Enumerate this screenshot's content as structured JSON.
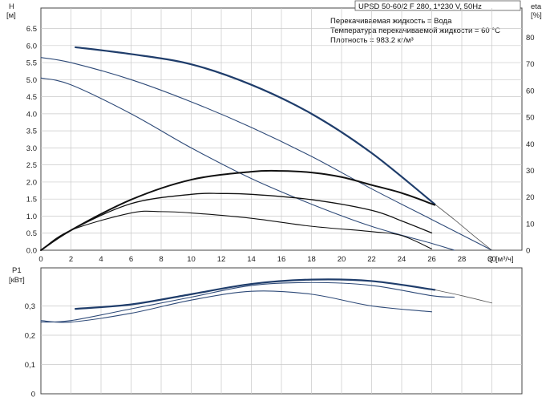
{
  "chart_data": [
    {
      "type": "line",
      "title": "UPSD 50-60/2 F 280, 1*230 V, 50Hz",
      "notes": [
        "Перекачиваемая жидкость = Вода",
        "Температура перекачиваемой жидкости = 60 °C",
        "Плотность = 983.2 кг/м³"
      ],
      "xlabel": "Q [м³/ч]",
      "ylabel_left": [
        "H",
        "[м]"
      ],
      "ylabel_right": [
        "eta",
        "[%]"
      ],
      "xlim": [
        0,
        32
      ],
      "ylim_left": [
        0,
        7.1
      ],
      "ylim_right": [
        0,
        91
      ],
      "x_ticks": [
        "0",
        "2",
        "4",
        "6",
        "8",
        "10",
        "12",
        "14",
        "16",
        "18",
        "20",
        "22",
        "24",
        "26",
        "28",
        "30"
      ],
      "y_ticks_left": [
        "0.0",
        "0.5",
        "1.0",
        "1.5",
        "2.0",
        "2.5",
        "3.0",
        "3.5",
        "4.0",
        "4.5",
        "5.0",
        "5.5",
        "6.0",
        "6.5"
      ],
      "y_ticks_right": [
        "0",
        "10",
        "20",
        "30",
        "40",
        "50",
        "60",
        "70",
        "80"
      ],
      "grid": true,
      "series": [
        {
          "role": "head",
          "axis": "left",
          "color": "#1f3d6b",
          "width": 2.2,
          "x": [
            2.3,
            6,
            10,
            14,
            18,
            22,
            26.2
          ],
          "y": [
            5.95,
            5.75,
            5.45,
            4.85,
            4.0,
            2.85,
            1.35
          ]
        },
        {
          "role": "head",
          "axis": "left",
          "color": "#2e4a78",
          "width": 1.1,
          "x": [
            0,
            2,
            6,
            10,
            14,
            18,
            22,
            26,
            30
          ],
          "y": [
            5.65,
            5.5,
            5.0,
            4.35,
            3.6,
            2.75,
            1.8,
            0.9,
            0.0
          ]
        },
        {
          "role": "head",
          "axis": "left",
          "color": "#2e4a78",
          "width": 1.1,
          "x": [
            0,
            2,
            6,
            10,
            14,
            18,
            22,
            26,
            27.5
          ],
          "y": [
            5.05,
            4.85,
            4.0,
            3.0,
            2.1,
            1.35,
            0.7,
            0.2,
            0.0
          ]
        },
        {
          "role": "head-extension",
          "axis": "left",
          "color": "#555555",
          "width": 0.8,
          "x": [
            26.2,
            27.5,
            29,
            30
          ],
          "y": [
            1.35,
            0.9,
            0.35,
            0.0
          ]
        },
        {
          "role": "eta",
          "axis": "right",
          "color": "#111111",
          "width": 2.0,
          "x": [
            0,
            2,
            6,
            10,
            14,
            16,
            18,
            20,
            22,
            24,
            26.2
          ],
          "y": [
            0,
            7.5,
            19,
            26.5,
            29.5,
            29.8,
            29.2,
            27.5,
            24.5,
            21.5,
            17
          ]
        },
        {
          "role": "eta",
          "axis": "right",
          "color": "#111111",
          "width": 1.3,
          "x": [
            0,
            2,
            6,
            10,
            12,
            14,
            18,
            22,
            24,
            26
          ],
          "y": [
            0,
            7.5,
            17.5,
            21,
            21.3,
            21,
            19,
            15,
            11,
            6.5
          ]
        },
        {
          "role": "eta",
          "axis": "right",
          "color": "#111111",
          "width": 1.1,
          "x": [
            0,
            2,
            6,
            8,
            10,
            14,
            18,
            22,
            24,
            26
          ],
          "y": [
            0,
            7.5,
            14,
            14.5,
            14,
            12,
            9,
            7,
            5.5,
            0.5
          ]
        }
      ]
    },
    {
      "type": "line",
      "ylabel": [
        "P1",
        "[кВт]"
      ],
      "xlim": [
        0,
        32
      ],
      "ylim": [
        0,
        0.43
      ],
      "y_ticks": [
        "0",
        "0,1",
        "0,2",
        "0,3"
      ],
      "grid": true,
      "series": [
        {
          "role": "power",
          "color": "#1f3d6b",
          "width": 2.2,
          "x": [
            2.3,
            6,
            10,
            14,
            18,
            22,
            26.2
          ],
          "y": [
            0.29,
            0.305,
            0.34,
            0.375,
            0.39,
            0.385,
            0.355
          ]
        },
        {
          "role": "power",
          "color": "#2e4a78",
          "width": 1.1,
          "x": [
            0,
            2,
            6,
            10,
            14,
            18,
            22,
            26,
            27.5
          ],
          "y": [
            0.245,
            0.25,
            0.29,
            0.33,
            0.37,
            0.38,
            0.37,
            0.335,
            0.33
          ]
        },
        {
          "role": "power",
          "color": "#2e4a78",
          "width": 1.1,
          "x": [
            0,
            2,
            6,
            10,
            14,
            18,
            22,
            26
          ],
          "y": [
            0.25,
            0.245,
            0.275,
            0.32,
            0.35,
            0.34,
            0.3,
            0.28
          ]
        },
        {
          "role": "power-extension",
          "color": "#555555",
          "width": 0.8,
          "x": [
            26.2,
            28,
            30
          ],
          "y": [
            0.355,
            0.335,
            0.31
          ]
        }
      ]
    }
  ]
}
